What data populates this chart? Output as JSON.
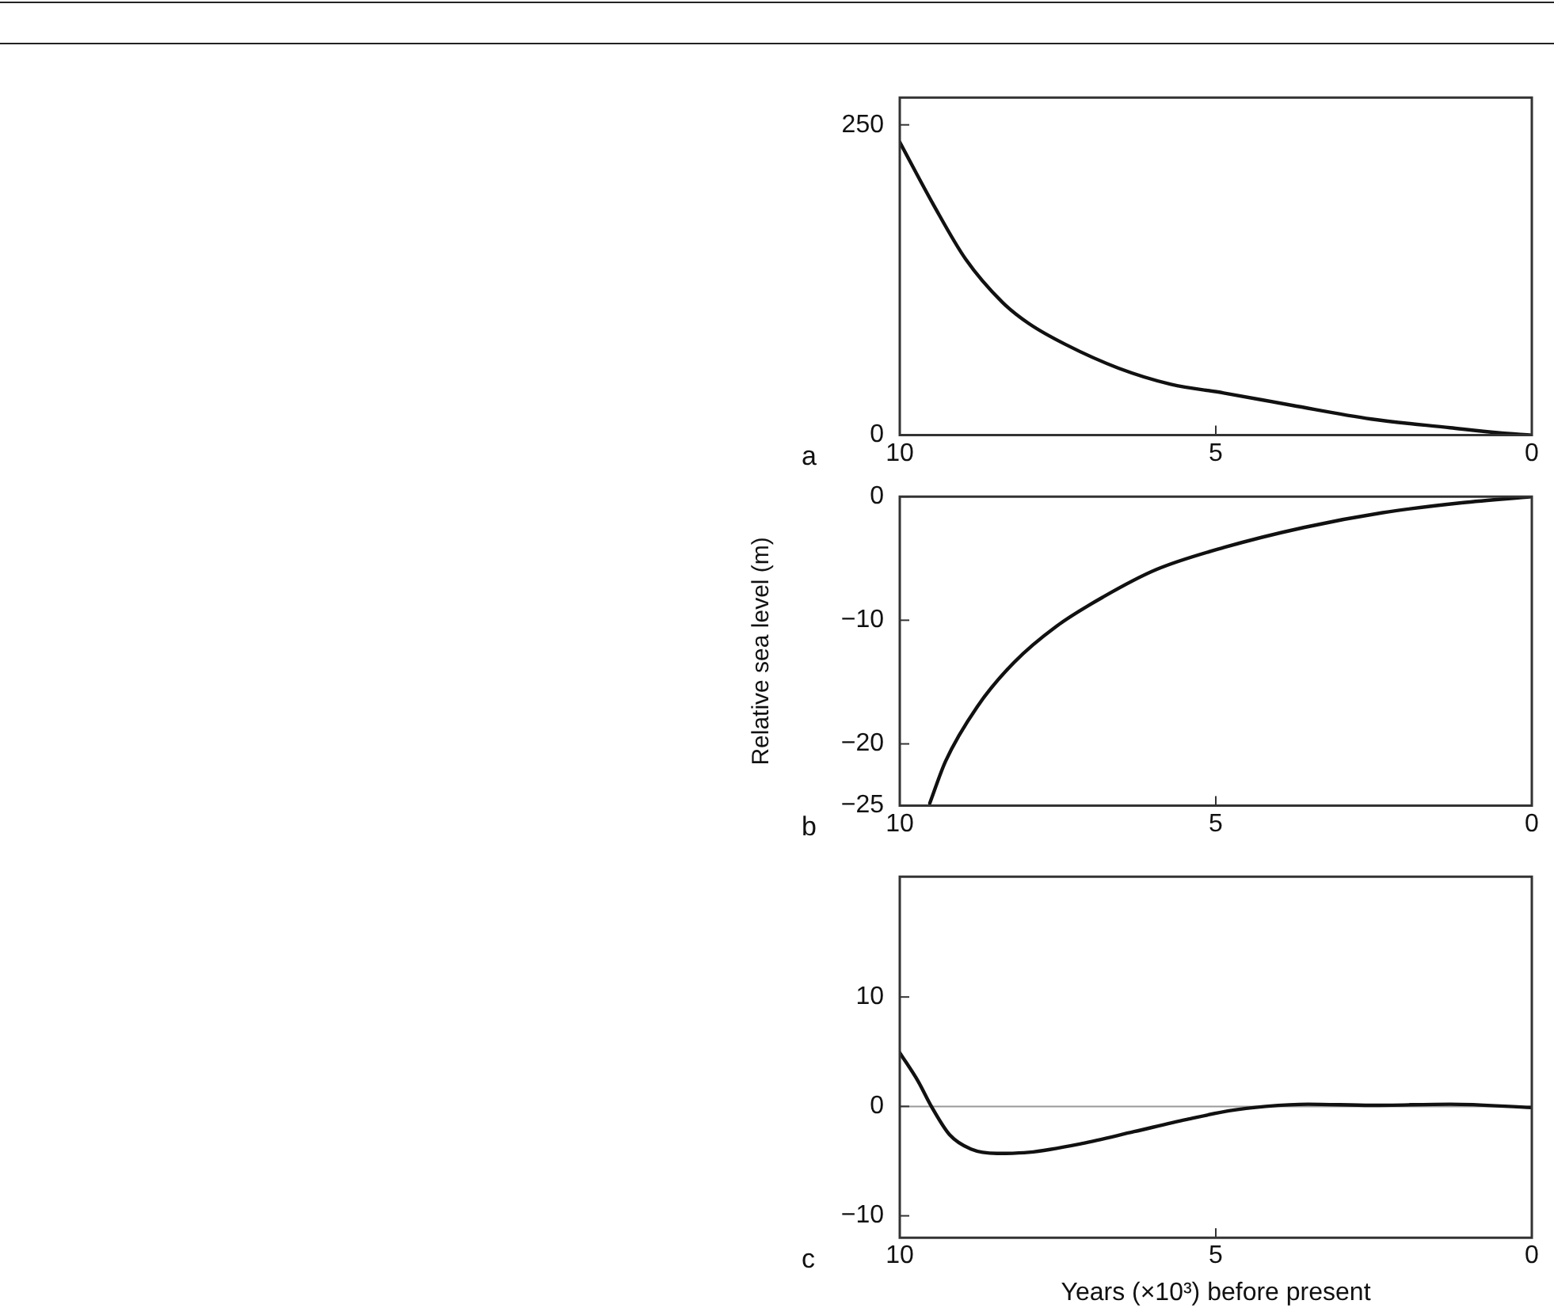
{
  "chart_data": [
    {
      "type": "line",
      "annotations": [
        "a"
      ],
      "xlim": [
        10,
        0
      ],
      "xticks": [
        10,
        5,
        0
      ],
      "ylim": [
        0,
        272
      ],
      "yticks": [
        0,
        250
      ],
      "series": [
        {
          "color": "#111111",
          "x": [
            10,
            9.46,
            8.96,
            8.375,
            7.96,
            7.375,
            6.54,
            5.71,
            4.875,
            3.79,
            2.54,
            1.29,
            0.54,
            0
          ],
          "values": [
            236,
            185,
            142,
            107,
            90,
            73,
            54,
            41,
            34,
            24,
            13,
            6,
            2,
            0
          ]
        }
      ]
    },
    {
      "type": "line",
      "annotations": [
        "b"
      ],
      "ylabel": "Relative sea level (m)",
      "xlim": [
        10,
        0
      ],
      "xticks": [
        10,
        5,
        0
      ],
      "ylim": [
        -25,
        0
      ],
      "yticks": [
        0,
        -10,
        -20,
        -25
      ],
      "series": [
        {
          "color": "#111111",
          "x": [
            9.525,
            9.275,
            8.775,
            8.19,
            7.525,
            6.775,
            5.94,
            4.86,
            3.61,
            2.36,
            1.11,
            0
          ],
          "values": [
            -24.8,
            -21.4,
            -17,
            -13.4,
            -10.5,
            -8.1,
            -5.9,
            -4.1,
            -2.5,
            -1.3,
            -0.5,
            0
          ]
        }
      ]
    },
    {
      "type": "line",
      "annotations": [
        "c"
      ],
      "xlabel": "Years (×10³) before present",
      "xlim": [
        10,
        0
      ],
      "xticks": [
        10,
        5,
        0
      ],
      "ylim": [
        -12,
        21
      ],
      "yticks": [
        -10,
        0,
        10
      ],
      "ref_lines": [
        {
          "axis": "y",
          "value": 0,
          "color": "#999999"
        }
      ],
      "series": [
        {
          "color": "#111111",
          "x": [
            10,
            9.71,
            9.5,
            9.21,
            8.875,
            8.46,
            7.96,
            7.125,
            6.29,
            5.46,
            4.79,
            4.21,
            3.54,
            2.54,
            1.29,
            0
          ],
          "values": [
            4.9,
            2.3,
            0,
            -2.6,
            -3.9,
            -4.3,
            -4.2,
            -3.4,
            -2.3,
            -1.2,
            -0.4,
            0,
            0.2,
            0.1,
            0.2,
            -0.1
          ]
        }
      ]
    }
  ]
}
